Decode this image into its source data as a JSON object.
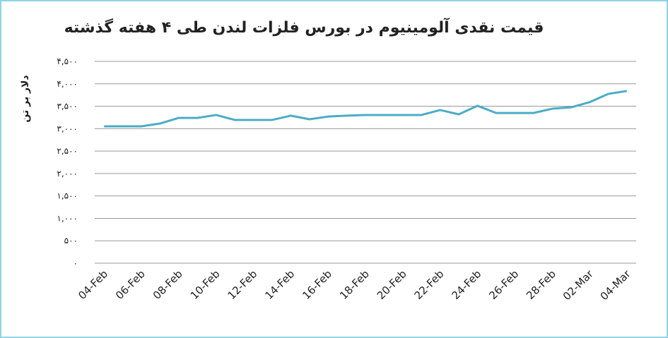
{
  "chart_data": {
    "type": "line",
    "title": "قیمت نقدی آلومینیوم در بورس فلزات لندن طی ۴ هفته گذشته",
    "y_label": "دلار بر تن",
    "categories": [
      "04-Feb",
      null,
      "06-Feb",
      null,
      "08-Feb",
      null,
      "10-Feb",
      null,
      "12-Feb",
      null,
      "14-Feb",
      null,
      "16-Feb",
      null,
      "18-Feb",
      null,
      "20-Feb",
      null,
      "22-Feb",
      null,
      "24-Feb",
      null,
      "26-Feb",
      null,
      "28-Feb",
      null,
      "02-Mar",
      null,
      "04-Mar"
    ],
    "values": [
      3052,
      3052,
      3052,
      3115,
      3240,
      3240,
      3305,
      3195,
      3195,
      3195,
      3290,
      3210,
      3270,
      3290,
      3305,
      3305,
      3305,
      3305,
      3415,
      3320,
      3510,
      3350,
      3350,
      3350,
      3445,
      3475,
      3590,
      3775,
      3840
    ],
    "color": "#4bacc6",
    "ylim": [
      0,
      4500
    ],
    "yticks": [
      {
        "value": 0,
        "label": "۰"
      },
      {
        "value": 500,
        "label": "۵۰۰"
      },
      {
        "value": 1000,
        "label": "۱,۰۰۰"
      },
      {
        "value": 1500,
        "label": "۱,۵۰۰"
      },
      {
        "value": 2000,
        "label": "۲,۰۰۰"
      },
      {
        "value": 2500,
        "label": "۲,۵۰۰"
      },
      {
        "value": 3000,
        "label": "۳,۰۰۰"
      },
      {
        "value": 3500,
        "label": "۳,۵۰۰"
      },
      {
        "value": 4000,
        "label": "۴,۰۰۰"
      },
      {
        "value": 4500,
        "label": "۴,۵۰۰"
      }
    ],
    "grid": true
  }
}
